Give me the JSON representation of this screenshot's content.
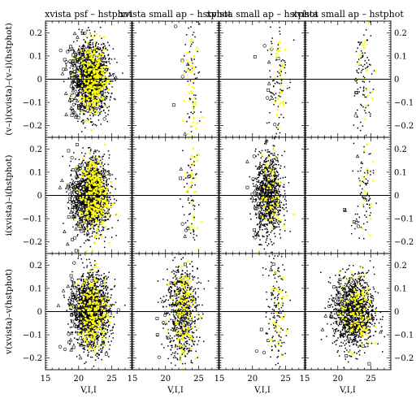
{
  "chart_data": {
    "type": "scatter",
    "layout": "3 rows x 4 columns",
    "column_titles": [
      "xvista psf – hstphot",
      "xvista small ap – hstphot",
      "xvista small ap – hstphot",
      "xvista small ap – hstphot"
    ],
    "row_ylabels": [
      "(v–i)(xvista)–(v–i)(hstphot)",
      "i(xvista)–i(hstphot)",
      "v(xvista)–v(hstphot)"
    ],
    "xlabel": "V,I,I",
    "xlim": [
      15,
      28
    ],
    "ylim": [
      -0.25,
      0.25
    ],
    "xticks": [
      15,
      20,
      25
    ],
    "yticks": [
      -0.2,
      -0.1,
      0,
      0.1,
      0.2
    ],
    "ytick_labels": [
      "−0.2",
      "−0.1",
      "0",
      "0.1",
      "0.2"
    ],
    "reference_line_y": 0,
    "series_colors": {
      "main": "#000000",
      "highlight": "#ffff00"
    },
    "panels": [
      {
        "row": 0,
        "col": 0,
        "center_x": 22.0,
        "spread_x": 1.3,
        "sigma_y": 0.075,
        "n_black": 1400,
        "n_yellow": 260,
        "n_open": 160
      },
      {
        "row": 0,
        "col": 1,
        "center_x": 23.8,
        "spread_x": 0.7,
        "sigma_y": 0.14,
        "n_black": 60,
        "n_yellow": 40,
        "n_open": 8
      },
      {
        "row": 0,
        "col": 2,
        "center_x": 23.6,
        "spread_x": 0.8,
        "sigma_y": 0.14,
        "n_black": 80,
        "n_yellow": 30,
        "n_open": 10
      },
      {
        "row": 0,
        "col": 3,
        "center_x": 24.0,
        "spread_x": 0.7,
        "sigma_y": 0.14,
        "n_black": 90,
        "n_yellow": 20,
        "n_open": 6
      },
      {
        "row": 1,
        "col": 0,
        "center_x": 22.0,
        "spread_x": 1.3,
        "sigma_y": 0.08,
        "n_black": 1400,
        "n_yellow": 260,
        "n_open": 140
      },
      {
        "row": 1,
        "col": 1,
        "center_x": 23.8,
        "spread_x": 0.7,
        "sigma_y": 0.14,
        "n_black": 60,
        "n_yellow": 30,
        "n_open": 8
      },
      {
        "row": 1,
        "col": 2,
        "center_x": 22.5,
        "spread_x": 1.0,
        "sigma_y": 0.09,
        "n_black": 900,
        "n_yellow": 60,
        "n_open": 40
      },
      {
        "row": 1,
        "col": 3,
        "center_x": 24.0,
        "spread_x": 0.7,
        "sigma_y": 0.14,
        "n_black": 90,
        "n_yellow": 20,
        "n_open": 6
      },
      {
        "row": 2,
        "col": 0,
        "center_x": 22.0,
        "spread_x": 1.4,
        "sigma_y": 0.08,
        "n_black": 1400,
        "n_yellow": 200,
        "n_open": 120
      },
      {
        "row": 2,
        "col": 1,
        "center_x": 22.5,
        "spread_x": 1.2,
        "sigma_y": 0.11,
        "n_black": 700,
        "n_yellow": 120,
        "n_open": 30
      },
      {
        "row": 2,
        "col": 2,
        "center_x": 23.5,
        "spread_x": 0.8,
        "sigma_y": 0.14,
        "n_black": 150,
        "n_yellow": 40,
        "n_open": 8
      },
      {
        "row": 2,
        "col": 3,
        "center_x": 22.5,
        "spread_x": 1.5,
        "sigma_y": 0.08,
        "n_black": 1200,
        "n_yellow": 120,
        "n_open": 60
      }
    ]
  }
}
